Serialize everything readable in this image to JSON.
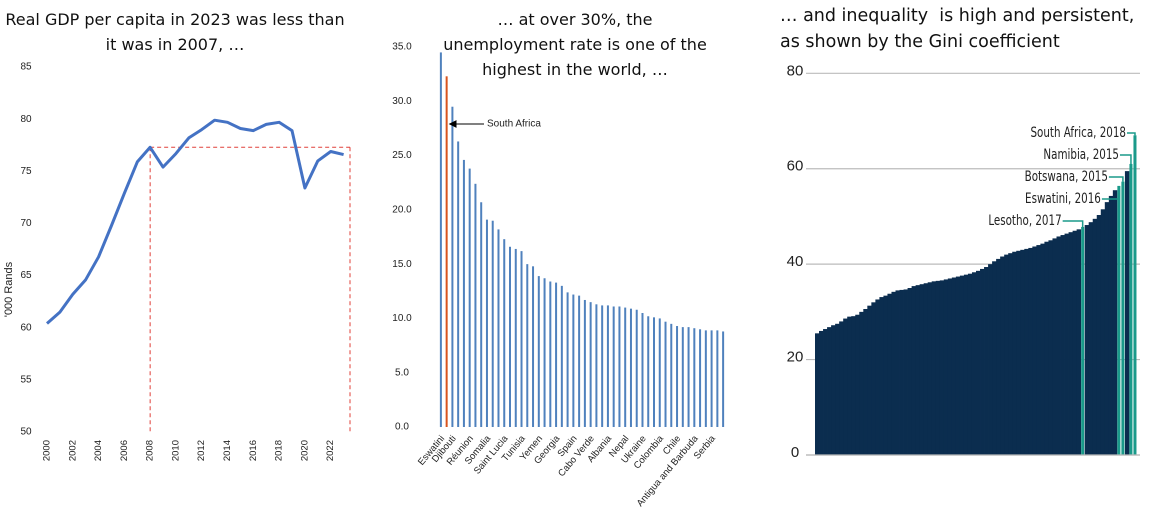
{
  "chart_data": [
    {
      "type": "line",
      "title": "Real GDP per capita in 2023 was less than it was in 2007, …",
      "y_label": "'000 Rands",
      "x": [
        2000,
        2001,
        2002,
        2003,
        2004,
        2005,
        2006,
        2007,
        2008,
        2009,
        2010,
        2011,
        2012,
        2013,
        2014,
        2015,
        2016,
        2017,
        2018,
        2019,
        2020,
        2021,
        2022,
        2023
      ],
      "series": [
        {
          "name": "Real GDP per capita",
          "color": "#4472c4",
          "values": [
            60.4,
            61.5,
            63.2,
            64.6,
            66.8,
            69.8,
            72.9,
            75.9,
            77.3,
            75.4,
            76.7,
            78.2,
            79.0,
            79.9,
            79.7,
            79.1,
            78.9,
            79.5,
            79.7,
            78.9,
            73.4,
            76.0,
            76.9,
            76.6
          ]
        }
      ],
      "reference_color": "#e0403a",
      "xlim": [
        2000,
        2023.5
      ],
      "xticks": [
        2000,
        2002,
        2004,
        2006,
        2008,
        2010,
        2012,
        2014,
        2016,
        2018,
        2020,
        2022
      ],
      "ylim": [
        50,
        85
      ],
      "yticks": [
        50,
        55,
        60,
        65,
        70,
        75,
        80,
        85
      ]
    },
    {
      "type": "bar",
      "title": "… at over 30%, the unemployment rate is one of the highest in the world, …",
      "annotation": "South Africa",
      "categories": [
        "Eswatini",
        null,
        "Djibouti",
        null,
        null,
        "Réunion",
        null,
        null,
        "Somalia",
        null,
        null,
        "Saint Lucia",
        null,
        null,
        "Tunisia",
        null,
        null,
        "Yemen",
        null,
        null,
        "Georgia",
        null,
        null,
        "Spain",
        null,
        null,
        "Cabo Verde",
        null,
        null,
        "Albania",
        null,
        null,
        "Nepal",
        null,
        null,
        "Ukraine",
        null,
        null,
        "Colombia",
        null,
        null,
        "Chile",
        null,
        null,
        "Antigua and Barbuda",
        null,
        null,
        "Serbia",
        null,
        null
      ],
      "values": [
        34.5,
        32.3,
        29.5,
        26.3,
        24.6,
        23.8,
        22.4,
        20.7,
        19.1,
        19.0,
        18.2,
        17.3,
        16.6,
        16.4,
        16.2,
        15.0,
        14.8,
        13.9,
        13.7,
        13.4,
        13.3,
        13.0,
        12.4,
        12.2,
        12.1,
        11.7,
        11.5,
        11.3,
        11.2,
        11.2,
        11.1,
        11.1,
        11.0,
        10.9,
        10.8,
        10.5,
        10.2,
        10.1,
        10.0,
        9.7,
        9.5,
        9.3,
        9.2,
        9.2,
        9.1,
        9.0,
        8.9,
        8.9,
        8.9,
        8.8
      ],
      "colors": [
        "#4f81bd",
        "#d9541e",
        "#4f81bd",
        "#4f81bd",
        "#4f81bd",
        "#4f81bd",
        "#4f81bd",
        "#4f81bd",
        "#4f81bd",
        "#4f81bd",
        "#4f81bd",
        "#4f81bd",
        "#4f81bd",
        "#4f81bd",
        "#4f81bd",
        "#4f81bd",
        "#4f81bd",
        "#4f81bd",
        "#4f81bd",
        "#4f81bd",
        "#4f81bd",
        "#4f81bd",
        "#4f81bd",
        "#4f81bd",
        "#4f81bd",
        "#4f81bd",
        "#4f81bd",
        "#4f81bd",
        "#4f81bd",
        "#4f81bd",
        "#4f81bd",
        "#4f81bd",
        "#4f81bd",
        "#4f81bd",
        "#4f81bd",
        "#4f81bd",
        "#4f81bd",
        "#4f81bd",
        "#4f81bd",
        "#4f81bd",
        "#4f81bd",
        "#4f81bd",
        "#4f81bd",
        "#4f81bd",
        "#4f81bd",
        "#4f81bd",
        "#4f81bd",
        "#4f81bd",
        "#4f81bd",
        "#4f81bd"
      ],
      "ylim": [
        0,
        35
      ],
      "yticks": [
        {
          "value": 0,
          "label": "0.0"
        },
        {
          "value": 5,
          "label": "5.0"
        },
        {
          "value": 10,
          "label": "10.0"
        },
        {
          "value": 15,
          "label": "15.0"
        },
        {
          "value": 20,
          "label": "20.0"
        },
        {
          "value": 25,
          "label": "25.0"
        },
        {
          "value": 30,
          "label": "30.0"
        },
        {
          "value": 35,
          "label": "35.0"
        }
      ]
    },
    {
      "type": "bar",
      "title": "… and inequality  is high and persistent, as shown by the Gini coefficient",
      "categories": [
        null,
        null,
        null,
        null,
        null,
        null,
        null,
        null,
        null,
        null,
        null,
        null,
        null,
        null,
        null,
        null,
        null,
        null,
        null,
        null,
        null,
        null,
        null,
        null,
        null,
        null,
        null,
        null,
        null,
        null,
        null,
        null,
        null,
        null,
        null,
        null,
        null,
        null,
        null,
        null,
        null,
        null,
        null,
        null,
        null,
        null,
        null,
        null,
        null,
        null,
        null,
        null,
        null,
        null,
        null,
        null,
        null,
        null,
        null,
        null,
        null,
        null,
        null,
        null,
        null,
        null,
        "Lesotho, 2017",
        null,
        null,
        null,
        null,
        null,
        null,
        null,
        null,
        "Eswatini, 2016",
        "Botswana, 2015",
        null,
        "Namibia, 2015",
        "South Africa, 2018"
      ],
      "values": [
        25.5,
        26.0,
        26.4,
        26.8,
        27.2,
        27.5,
        28.0,
        28.6,
        29.0,
        29.1,
        29.4,
        30.0,
        30.6,
        31.3,
        32.0,
        32.6,
        33.1,
        33.4,
        33.8,
        34.2,
        34.5,
        34.6,
        34.7,
        35.0,
        35.4,
        35.6,
        35.8,
        36.0,
        36.2,
        36.4,
        36.5,
        36.6,
        36.8,
        37.0,
        37.2,
        37.4,
        37.6,
        37.8,
        38.0,
        38.3,
        38.6,
        39.0,
        39.4,
        40.0,
        40.6,
        41.1,
        41.6,
        42.0,
        42.3,
        42.6,
        42.8,
        43.0,
        43.2,
        43.4,
        43.7,
        44.0,
        44.3,
        44.7,
        45.0,
        45.4,
        45.8,
        46.1,
        46.4,
        46.7,
        47.0,
        47.3,
        47.8,
        48.2,
        48.8,
        49.5,
        50.3,
        51.5,
        53.0,
        54.3,
        55.5,
        56.4,
        57.3,
        59.5,
        61.0,
        67.0
      ],
      "color": "#0b2d4f",
      "highlight_color": "#1a9a8a",
      "grid": true,
      "ylim": [
        0,
        83
      ],
      "yticks": [
        0,
        20,
        40,
        60,
        80
      ]
    }
  ]
}
